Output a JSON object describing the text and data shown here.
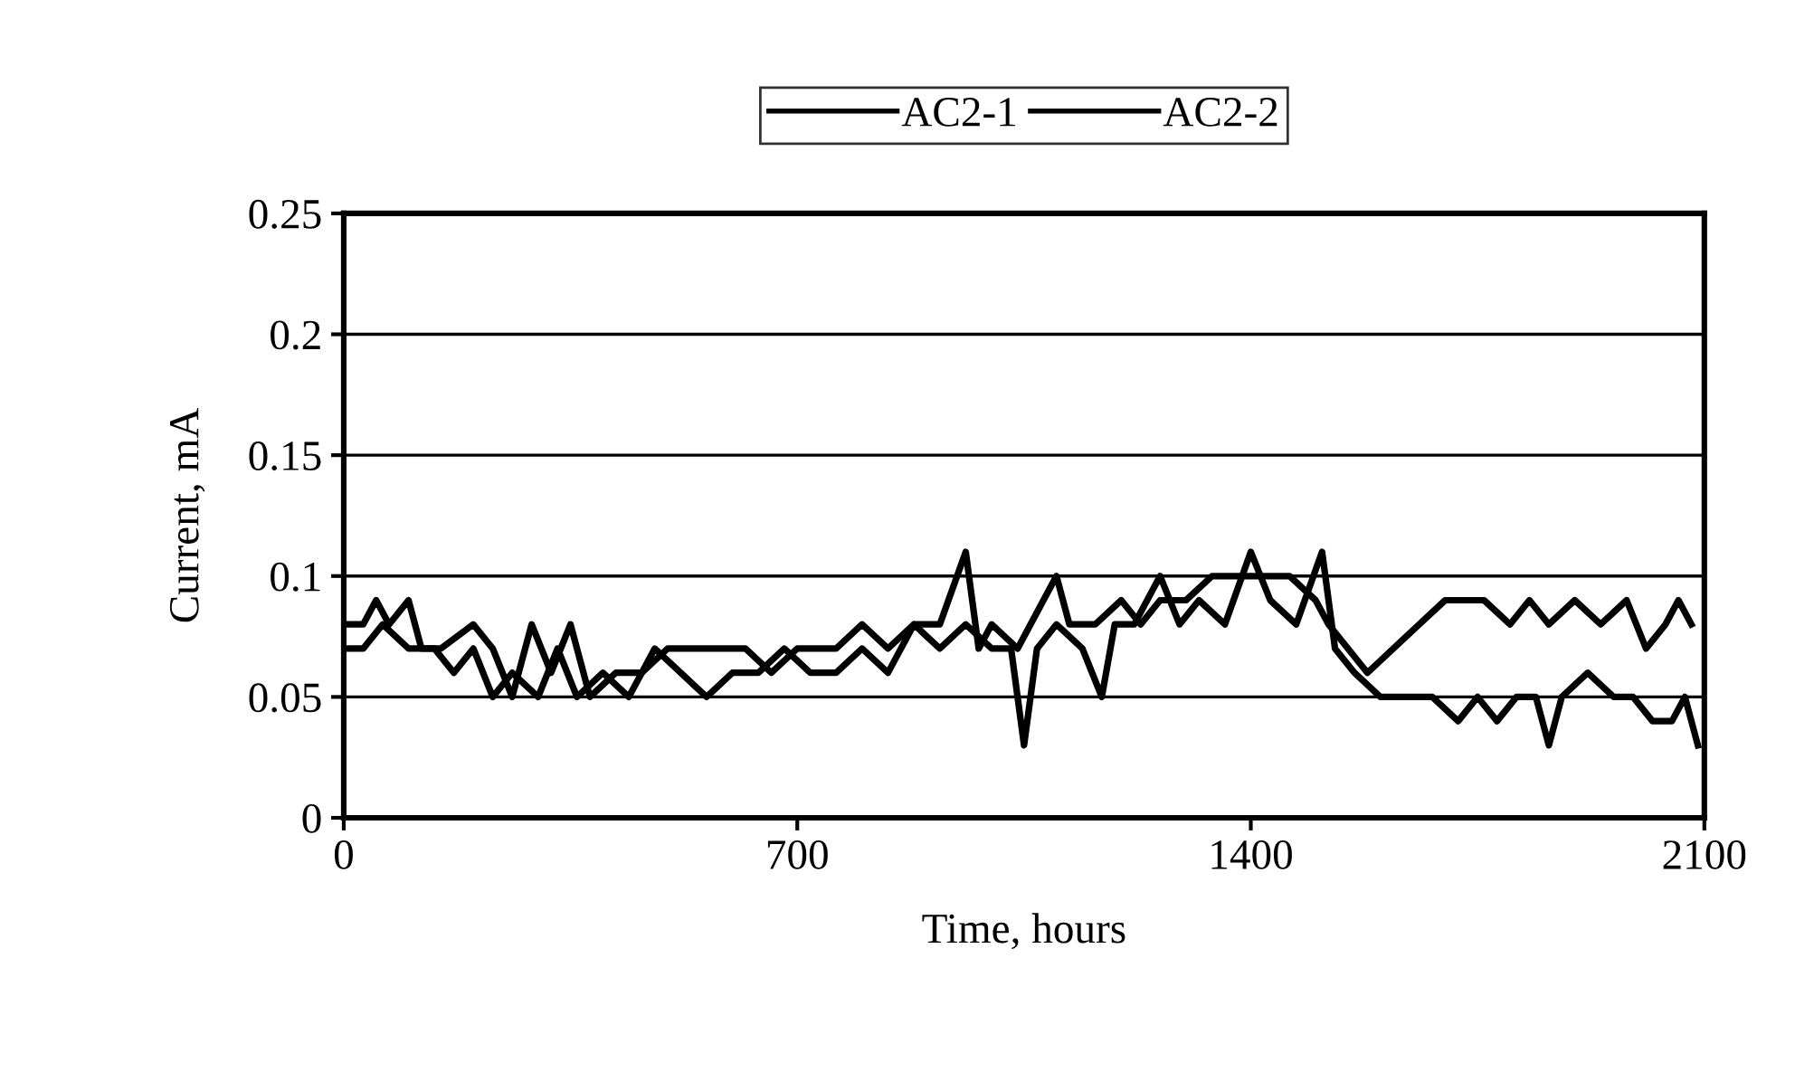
{
  "chart_data": {
    "type": "line",
    "xlabel": "Time, hours",
    "ylabel": "Current, mA",
    "xlim": [
      0,
      2100
    ],
    "xticks": [
      0,
      700,
      1400,
      2100
    ],
    "ylim": [
      0,
      0.25
    ],
    "yticks": [
      0,
      0.05,
      0.1,
      0.15,
      0.2,
      0.25
    ],
    "grid": "y",
    "legend": "top",
    "line_style": "solid",
    "series": [
      {
        "name": "AC2-1",
        "color": "#000000",
        "x": [
          0,
          30,
          50,
          70,
          100,
          120,
          150,
          200,
          230,
          260,
          290,
          320,
          350,
          380,
          420,
          460,
          500,
          560,
          620,
          660,
          700,
          760,
          800,
          840,
          880,
          920,
          960,
          980,
          1000,
          1040,
          1060,
          1100,
          1120,
          1160,
          1200,
          1230,
          1260,
          1300,
          1340,
          1380,
          1420,
          1460,
          1500,
          1520,
          1550,
          1580,
          1620,
          1660,
          1700,
          1760,
          1800,
          1830,
          1860,
          1900,
          1940,
          1980,
          2010,
          2040,
          2060,
          2080
        ],
        "values": [
          0.08,
          0.08,
          0.09,
          0.08,
          0.09,
          0.07,
          0.07,
          0.08,
          0.07,
          0.05,
          0.08,
          0.06,
          0.08,
          0.05,
          0.06,
          0.06,
          0.07,
          0.07,
          0.07,
          0.06,
          0.07,
          0.07,
          0.08,
          0.07,
          0.08,
          0.08,
          0.11,
          0.07,
          0.08,
          0.07,
          0.08,
          0.1,
          0.08,
          0.08,
          0.09,
          0.08,
          0.09,
          0.09,
          0.1,
          0.1,
          0.1,
          0.1,
          0.09,
          0.08,
          0.07,
          0.06,
          0.07,
          0.08,
          0.09,
          0.09,
          0.08,
          0.09,
          0.08,
          0.09,
          0.08,
          0.09,
          0.07,
          0.08,
          0.09,
          0.08
        ]
      },
      {
        "name": "AC2-2",
        "color": "#000000",
        "x": [
          0,
          30,
          60,
          100,
          140,
          170,
          200,
          230,
          260,
          300,
          330,
          360,
          400,
          440,
          480,
          520,
          560,
          600,
          640,
          680,
          720,
          760,
          800,
          840,
          880,
          920,
          960,
          1000,
          1030,
          1050,
          1070,
          1100,
          1140,
          1170,
          1190,
          1220,
          1260,
          1290,
          1320,
          1360,
          1400,
          1430,
          1470,
          1510,
          1530,
          1560,
          1600,
          1640,
          1680,
          1720,
          1750,
          1780,
          1810,
          1840,
          1860,
          1880,
          1920,
          1960,
          1990,
          2020,
          2050,
          2070,
          2090
        ],
        "values": [
          0.07,
          0.07,
          0.08,
          0.07,
          0.07,
          0.06,
          0.07,
          0.05,
          0.06,
          0.05,
          0.07,
          0.05,
          0.06,
          0.05,
          0.07,
          0.06,
          0.05,
          0.06,
          0.06,
          0.07,
          0.06,
          0.06,
          0.07,
          0.06,
          0.08,
          0.07,
          0.08,
          0.07,
          0.07,
          0.03,
          0.07,
          0.08,
          0.07,
          0.05,
          0.08,
          0.08,
          0.1,
          0.08,
          0.09,
          0.08,
          0.11,
          0.09,
          0.08,
          0.11,
          0.07,
          0.06,
          0.05,
          0.05,
          0.05,
          0.04,
          0.05,
          0.04,
          0.05,
          0.05,
          0.03,
          0.05,
          0.06,
          0.05,
          0.05,
          0.04,
          0.04,
          0.05,
          0.03
        ]
      }
    ]
  }
}
